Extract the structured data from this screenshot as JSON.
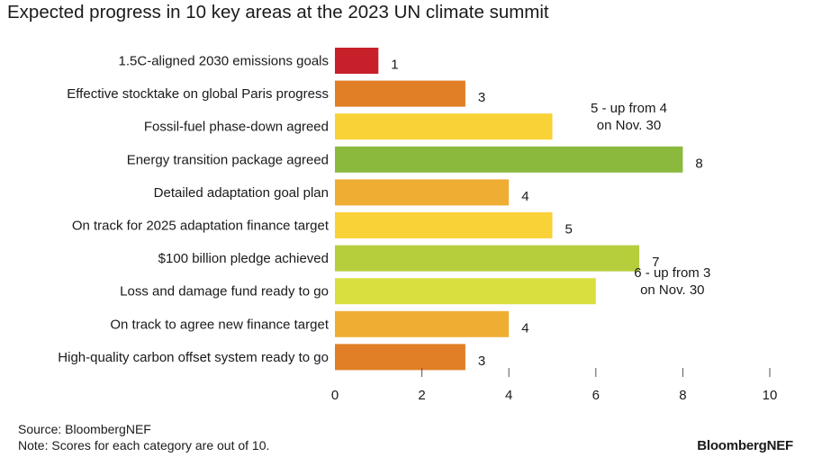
{
  "title": "Expected progress in 10 key areas at the 2023 UN climate summit",
  "chart_data": {
    "type": "bar",
    "orientation": "horizontal",
    "title": "Expected progress in 10 key areas at the 2023 UN climate summit",
    "categories": [
      "1.5C-aligned 2030 emissions goals",
      "Effective stocktake on global Paris progress",
      "Fossil-fuel phase-down agreed",
      "Energy transition package agreed",
      "Detailed adaptation goal plan",
      "On track for 2025 adaptation finance target",
      "$100 billion pledge achieved",
      "Loss and damage fund ready to go",
      "On track to agree new finance target",
      "High-quality carbon offset system ready to go"
    ],
    "values": [
      1,
      3,
      5,
      8,
      4,
      5,
      7,
      6,
      4,
      3
    ],
    "colors": [
      "#c8202a",
      "#e07f26",
      "#f9d237",
      "#8bb93e",
      "#efae33",
      "#f9d237",
      "#b6cd3c",
      "#d9df3f",
      "#efae33",
      "#e07f26"
    ],
    "data_labels": [
      [
        "1"
      ],
      [
        "3"
      ],
      [
        "5 - up from 4",
        "on Nov. 30"
      ],
      [
        "8"
      ],
      [
        "4"
      ],
      [
        "5"
      ],
      [
        "7"
      ],
      [
        "6 - up from 3",
        "on Nov. 30"
      ],
      [
        "4"
      ],
      [
        "3"
      ]
    ],
    "xlim": [
      0,
      10
    ],
    "xticks": [
      0,
      2,
      4,
      6,
      8,
      10
    ],
    "xlabel": "",
    "ylabel": "",
    "grid": false,
    "legend": "none"
  },
  "footer": {
    "source": "Source: BloombergNEF",
    "note": "Note: Scores for each category are out of 10."
  },
  "brand": "BloombergNEF"
}
